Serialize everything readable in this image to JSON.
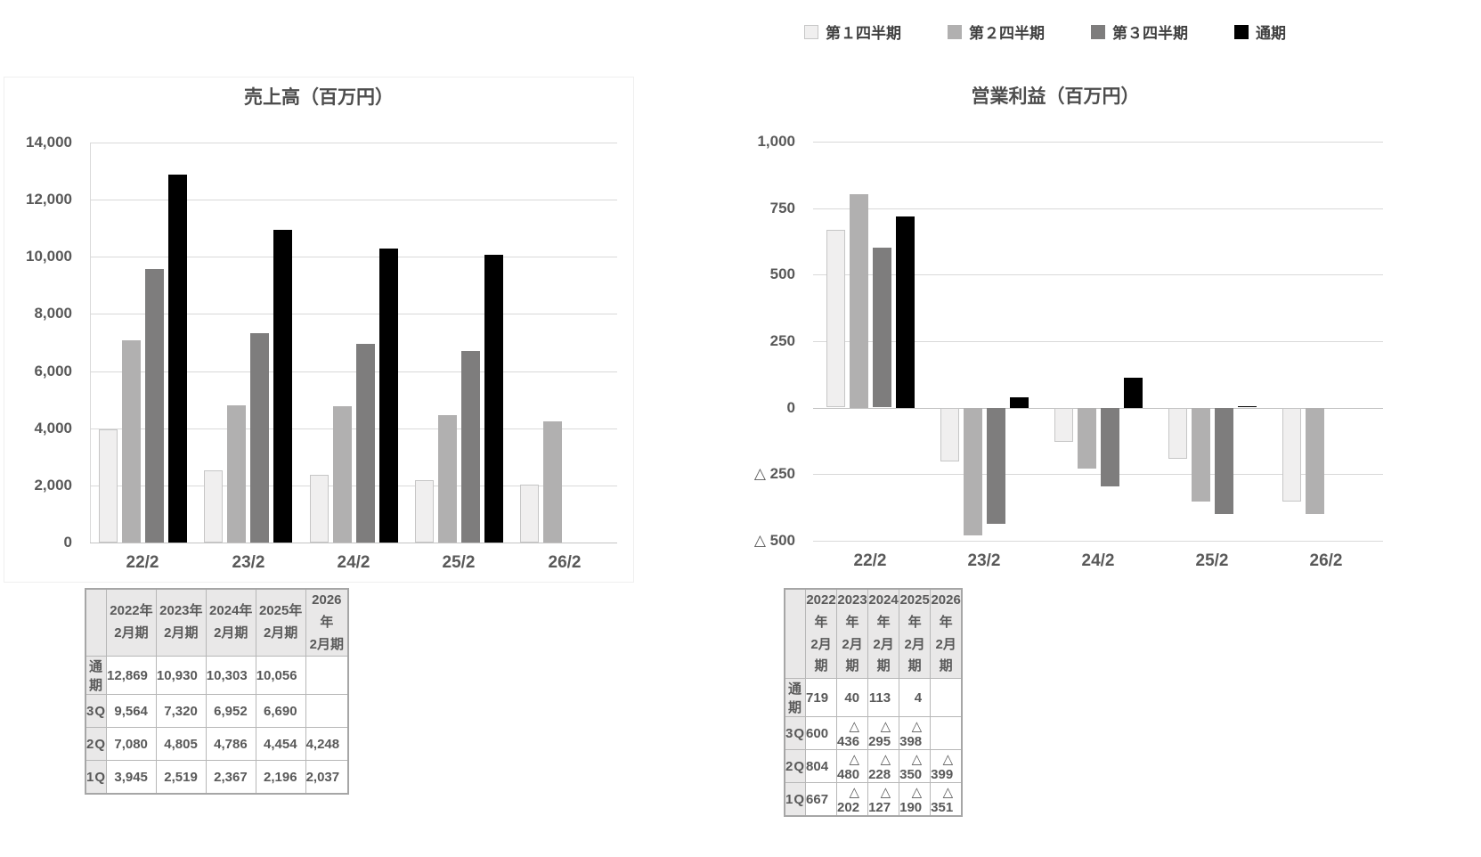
{
  "colors": {
    "q1_fill": "#f0efef",
    "q1_border": "#c6c6c6",
    "q2": "#b1b0b0",
    "q3": "#7e7d7d",
    "full": "#000000",
    "grid": "#d9d9d9",
    "axis": "#c4c4c4",
    "text": "#595959"
  },
  "legend": {
    "items": [
      {
        "label": "第１四半期",
        "key": "q1"
      },
      {
        "label": "第２四半期",
        "key": "q2"
      },
      {
        "label": "第３四半期",
        "key": "q3"
      },
      {
        "label": "通期",
        "key": "full"
      }
    ]
  },
  "chart_data": [
    {
      "type": "bar",
      "title": "売上高（百万円）",
      "categories": [
        "22/2",
        "23/2",
        "24/2",
        "25/2",
        "26/2"
      ],
      "series": [
        {
          "name": "第１四半期",
          "key": "q1",
          "values": [
            3945,
            2519,
            2367,
            2196,
            2037
          ]
        },
        {
          "name": "第２四半期",
          "key": "q2",
          "values": [
            7080,
            4805,
            4786,
            4454,
            4248
          ]
        },
        {
          "name": "第３四半期",
          "key": "q3",
          "values": [
            9564,
            7320,
            6952,
            6690,
            null
          ]
        },
        {
          "name": "通期",
          "key": "full",
          "values": [
            12869,
            10930,
            10303,
            10056,
            null
          ]
        }
      ],
      "ylim": [
        0,
        14000
      ],
      "ytick": 2000,
      "grid": true,
      "legend_position": "top-right"
    },
    {
      "type": "bar",
      "title": "営業利益（百万円）",
      "categories": [
        "22/2",
        "23/2",
        "24/2",
        "25/2",
        "26/2"
      ],
      "series": [
        {
          "name": "第１四半期",
          "key": "q1",
          "values": [
            667,
            -202,
            -127,
            -190,
            -351
          ]
        },
        {
          "name": "第２四半期",
          "key": "q2",
          "values": [
            804,
            -480,
            -228,
            -350,
            -399
          ]
        },
        {
          "name": "第３四半期",
          "key": "q3",
          "values": [
            600,
            -436,
            -295,
            -398,
            null
          ]
        },
        {
          "name": "通期",
          "key": "full",
          "values": [
            719,
            40,
            113,
            4,
            null
          ]
        }
      ],
      "ylim": [
        -500,
        1000
      ],
      "ytick": 250,
      "grid": true,
      "legend_position": "top-right"
    }
  ],
  "tables": [
    {
      "id": "sales-table",
      "col_headers": [
        "2022年\n2月期",
        "2023年\n2月期",
        "2024年\n2月期",
        "2025年\n2月期",
        "2026年\n2月期"
      ],
      "rows": [
        {
          "label": "通期",
          "values": [
            12869,
            10930,
            10303,
            10056,
            null
          ]
        },
        {
          "label": "3Q",
          "values": [
            9564,
            7320,
            6952,
            6690,
            null
          ]
        },
        {
          "label": "2Q",
          "values": [
            7080,
            4805,
            4786,
            4454,
            4248
          ]
        },
        {
          "label": "1Q",
          "values": [
            3945,
            2519,
            2367,
            2196,
            2037
          ]
        }
      ]
    },
    {
      "id": "profit-table",
      "col_headers": [
        "2022年\n2月期",
        "2023年\n2月期",
        "2024年\n2月期",
        "2025年\n2月期",
        "2026年\n2月期"
      ],
      "rows": [
        {
          "label": "通期",
          "values": [
            719,
            40,
            113,
            4,
            null
          ]
        },
        {
          "label": "3Q",
          "values": [
            600,
            -436,
            -295,
            -398,
            null
          ]
        },
        {
          "label": "2Q",
          "values": [
            804,
            -480,
            -228,
            -350,
            -399
          ]
        },
        {
          "label": "1Q",
          "values": [
            667,
            -202,
            -127,
            -190,
            -351
          ]
        }
      ]
    }
  ],
  "negative_prefix": "△"
}
